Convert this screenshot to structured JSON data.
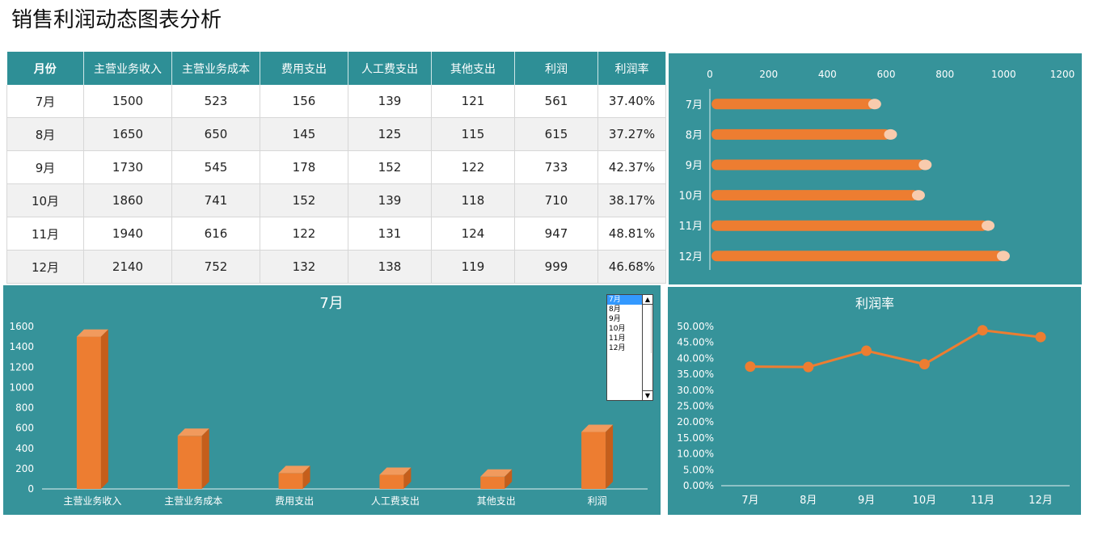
{
  "page_title": "销售利润动态图表分析",
  "table": {
    "headers": [
      "月份",
      "主营业务收入",
      "主营业务成本",
      "费用支出",
      "人工费支出",
      "其他支出",
      "利润",
      "利润率"
    ],
    "rows": [
      [
        "7月",
        "1500",
        "523",
        "156",
        "139",
        "121",
        "561",
        "37.40%"
      ],
      [
        "8月",
        "1650",
        "650",
        "145",
        "125",
        "115",
        "615",
        "37.27%"
      ],
      [
        "9月",
        "1730",
        "545",
        "178",
        "152",
        "122",
        "733",
        "42.37%"
      ],
      [
        "10月",
        "1860",
        "741",
        "152",
        "139",
        "118",
        "710",
        "38.17%"
      ],
      [
        "11月",
        "1940",
        "616",
        "122",
        "131",
        "124",
        "947",
        "48.81%"
      ],
      [
        "12月",
        "2140",
        "752",
        "132",
        "138",
        "119",
        "999",
        "46.68%"
      ]
    ]
  },
  "selector": {
    "options": [
      "7月",
      "8月",
      "9月",
      "10月",
      "11月",
      "12月"
    ],
    "selected": "7月"
  },
  "chart_data": [
    {
      "type": "bar",
      "orientation": "horizontal",
      "categories": [
        "7月",
        "8月",
        "9月",
        "10月",
        "11月",
        "12月"
      ],
      "values": [
        561,
        615,
        733,
        710,
        947,
        999
      ],
      "xlim": [
        0,
        1200
      ],
      "ticks": [
        "0",
        "200",
        "400",
        "600",
        "800",
        "1000",
        "1200"
      ],
      "bar_color": "#ed7d31",
      "cap_color": "#f8cbad"
    },
    {
      "type": "bar",
      "title": "7月",
      "categories": [
        "主营业务收入",
        "主营业务成本",
        "费用支出",
        "人工费支出",
        "其他支出",
        "利润"
      ],
      "values": [
        1500,
        523,
        156,
        139,
        121,
        561
      ],
      "ylim": [
        0,
        1600
      ],
      "ticks": [
        "0",
        "200",
        "400",
        "600",
        "800",
        "1000",
        "1200",
        "1400",
        "1600"
      ],
      "bar_color": "#ed7d31"
    },
    {
      "type": "line",
      "title": "利润率",
      "categories": [
        "7月",
        "8月",
        "9月",
        "10月",
        "11月",
        "12月"
      ],
      "values": [
        37.4,
        37.27,
        42.37,
        38.17,
        48.81,
        46.68
      ],
      "ylim": [
        0,
        50
      ],
      "ticks": [
        "0.00%",
        "5.00%",
        "10.00%",
        "15.00%",
        "20.00%",
        "25.00%",
        "30.00%",
        "35.00%",
        "40.00%",
        "45.00%",
        "50.00%"
      ],
      "line_color": "#ed7d31"
    }
  ],
  "colors": {
    "panel_bg": "#36939a",
    "header_bg": "#2e8f96",
    "accent": "#ed7d31"
  }
}
